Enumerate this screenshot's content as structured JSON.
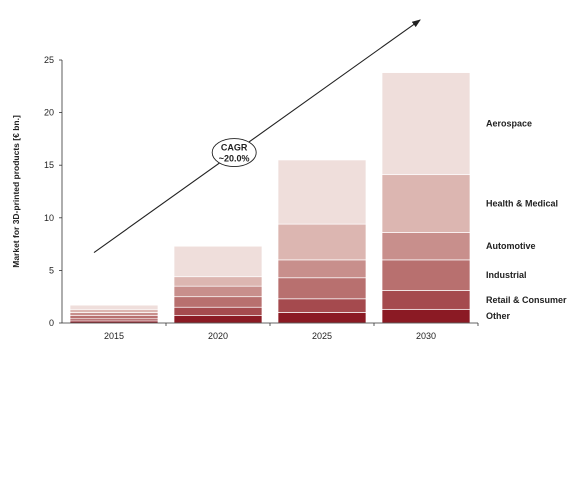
{
  "chart_data": {
    "type": "bar",
    "stacked": true,
    "title": "",
    "ylabel": "Market for 3D-printed products [€ bn.]",
    "xlabel": "",
    "ylim": [
      0,
      25
    ],
    "yticks": [
      0,
      5,
      10,
      15,
      20,
      25
    ],
    "grid": false,
    "categories": [
      "2015",
      "2020",
      "2025",
      "2030"
    ],
    "series": [
      {
        "name": "Other",
        "color": "#8b1a24",
        "values": [
          0.2,
          0.7,
          1.0,
          1.3
        ]
      },
      {
        "name": "Retail & Consumer",
        "color": "#a54a4e",
        "values": [
          0.2,
          0.8,
          1.3,
          1.8
        ]
      },
      {
        "name": "Industrial",
        "color": "#b8706f",
        "values": [
          0.3,
          1.0,
          2.0,
          2.9
        ]
      },
      {
        "name": "Automotive",
        "color": "#c88f8c",
        "values": [
          0.3,
          1.0,
          1.7,
          2.6
        ]
      },
      {
        "name": "Health & Medical",
        "color": "#dcb6b1",
        "values": [
          0.3,
          0.9,
          3.4,
          5.5
        ]
      },
      {
        "name": "Aerospace",
        "color": "#efdedb",
        "values": [
          0.4,
          2.9,
          6.1,
          9.7
        ]
      }
    ],
    "legend_placement": "right",
    "annotation": {
      "label_line1": "CAGR",
      "label_line2": "~20.0%",
      "arrow_from": {
        "x": "2015",
        "y": 6.7
      },
      "arrow_to": {
        "x": "2030",
        "y": 28.8
      }
    }
  }
}
